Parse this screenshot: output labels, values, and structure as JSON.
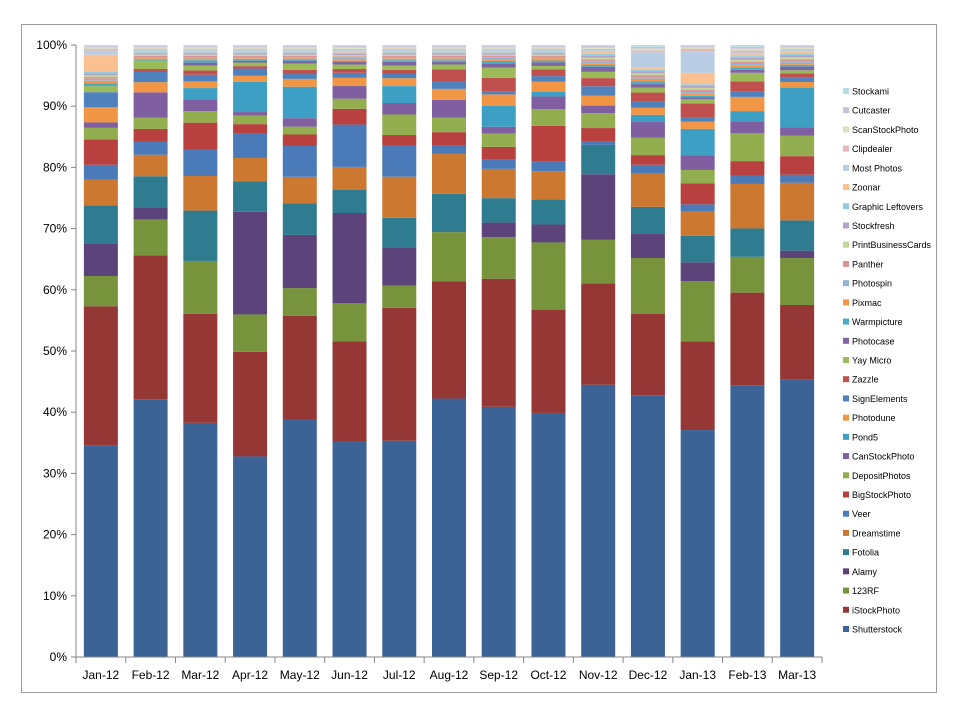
{
  "chart_data": {
    "type": "bar",
    "stacked": true,
    "normalized": true,
    "title": "",
    "xlabel": "",
    "ylabel": "",
    "ylim": [
      0,
      100
    ],
    "y_tick_labels": [
      "0%",
      "10%",
      "20%",
      "30%",
      "40%",
      "50%",
      "60%",
      "70%",
      "80%",
      "90%",
      "100%"
    ],
    "grid": false,
    "legend_position": "right",
    "categories": [
      "Jan-12",
      "Feb-12",
      "Mar-12",
      "Apr-12",
      "May-12",
      "Jun-12",
      "Jul-12",
      "Aug-12",
      "Sep-12",
      "Oct-12",
      "Nov-12",
      "Dec-12",
      "Jan-13",
      "Feb-13",
      "Mar-13"
    ],
    "series": [
      {
        "name": "Shutterstock",
        "color": "#3b6396",
        "values": [
          35,
          43,
          38.6,
          33.2,
          39.2,
          34.2,
          35.8,
          42.4,
          41,
          40.8,
          43.6,
          43.5,
          37.6,
          44,
          45
        ]
      },
      {
        "name": "iStockPhoto",
        "color": "#953735",
        "values": [
          23,
          24,
          18,
          17.3,
          17.2,
          15.8,
          22,
          19.2,
          21,
          17.2,
          16.2,
          13.5,
          14.7,
          15,
          12
        ]
      },
      {
        "name": "123RF",
        "color": "#77933c",
        "values": [
          5,
          6,
          8.7,
          6.2,
          4.6,
          6,
          3.7,
          8.1,
          6.8,
          11.3,
          7,
          9.3,
          10,
          5.8,
          7.6
        ]
      },
      {
        "name": "Alamy",
        "color": "#5c447a",
        "values": [
          5.4,
          2,
          0,
          17,
          8.8,
          14.3,
          6.2,
          0,
          2.4,
          3,
          10.5,
          4,
          3.1,
          0,
          1.2
        ]
      },
      {
        "name": "Fotolia",
        "color": "#2f7b8f",
        "values": [
          6.3,
          5.2,
          8.3,
          5,
          5.2,
          3.7,
          5,
          6.3,
          4,
          4.2,
          4.7,
          4.5,
          4.4,
          4.6,
          4.9
        ]
      },
      {
        "name": "Dreamstime",
        "color": "#cc7831",
        "values": [
          4.2,
          3.6,
          5.7,
          3.9,
          4.4,
          3.6,
          6.8,
          6.6,
          4.8,
          4.7,
          0,
          5.5,
          4.1,
          7.2,
          6.1
        ]
      },
      {
        "name": "Veer",
        "color": "#4a7bb8",
        "values": [
          2.5,
          2.2,
          4.3,
          4,
          5.1,
          6.7,
          5.1,
          1.3,
          1.5,
          1.6,
          0.5,
          1.5,
          1.1,
          1.3,
          1.3
        ]
      },
      {
        "name": "BigStockPhoto",
        "color": "#b8403e",
        "values": [
          4.2,
          2.1,
          4.5,
          1.6,
          1.9,
          2.5,
          1.8,
          2.2,
          2.1,
          6,
          2.2,
          1.6,
          3.5,
          2.4,
          3
        ]
      },
      {
        "name": "DepositPhotos",
        "color": "#92ae4f",
        "values": [
          1.9,
          1.9,
          1.9,
          1.4,
          1.3,
          1.6,
          3.4,
          2.4,
          2.2,
          2.8,
          2.4,
          2.9,
          2.2,
          4.5,
          3.3
        ]
      },
      {
        "name": "CanStockPhoto",
        "color": "#7f5f9f",
        "values": [
          0.9,
          4.2,
          1.9,
          0.6,
          1.4,
          2,
          1.9,
          2.9,
          1.1,
          2.1,
          1.2,
          2.6,
          2.4,
          1.9,
          1.4
        ]
      },
      {
        "name": "Pond5",
        "color": "#3e9fc4",
        "values": [
          0,
          0,
          1.9,
          5,
          5.2,
          0,
          2.8,
          0,
          3.4,
          0.8,
          0,
          1.2,
          4.4,
          1.7,
          6.4
        ]
      },
      {
        "name": "Photodune",
        "color": "#f09644",
        "values": [
          2.5,
          1.7,
          1.1,
          1,
          1.3,
          1.3,
          1.3,
          1.8,
          1.9,
          1.7,
          1.6,
          1.2,
          1.2,
          2.3,
          0.9
        ]
      },
      {
        "name": "SignElements",
        "color": "#4f81bd",
        "values": [
          2.5,
          1.7,
          1.1,
          1.2,
          0.8,
          0.8,
          0.7,
          1.2,
          0.5,
          0.9,
          1.5,
          1,
          0.7,
          0.9,
          0.8
        ]
      },
      {
        "name": "Zazzle",
        "color": "#c0504d",
        "values": [
          0,
          0.5,
          0.7,
          0.4,
          0.7,
          0.6,
          0.7,
          2,
          2.2,
          1.1,
          1.3,
          1.5,
          2.3,
          1.6,
          0.6
        ]
      },
      {
        "name": "Yay Micro",
        "color": "#9bbb59",
        "values": [
          1,
          1.4,
          0.8,
          0.6,
          1,
          0.7,
          0.7,
          0.8,
          1.7,
          0.6,
          1,
          0.8,
          0.7,
          1.4,
          0.5
        ]
      },
      {
        "name": "Photocase",
        "color": "#8064a2",
        "values": [
          0,
          0,
          0.5,
          0.3,
          0.5,
          0.4,
          0.6,
          0.4,
          0.7,
          0.6,
          0.8,
          0.6,
          0.3,
          0.5,
          0.6
        ]
      },
      {
        "name": "Warmpicture",
        "color": "#4bacc6",
        "values": [
          0.5,
          0.2,
          0.4,
          0.2,
          0.2,
          0.2,
          0.3,
          0.3,
          0.4,
          0.3,
          0.3,
          0.5,
          0.3,
          0.4,
          0.3
        ]
      },
      {
        "name": "Pixmac",
        "color": "#f79646",
        "values": [
          0.4,
          0.2,
          0.3,
          0.2,
          0.2,
          0.3,
          0.3,
          0.3,
          0.3,
          0.4,
          0.3,
          0.4,
          0.4,
          0.3,
          0.3
        ]
      },
      {
        "name": "Photospin",
        "color": "#95b3d7",
        "values": [
          0.3,
          0.2,
          0.2,
          0.2,
          0.2,
          0.2,
          0.2,
          0.2,
          0.3,
          0.2,
          0.3,
          0.3,
          0.3,
          0.3,
          0.3
        ]
      },
      {
        "name": "Panther",
        "color": "#d99694",
        "values": [
          0.3,
          0.2,
          0.2,
          0.2,
          0.2,
          0.2,
          0.2,
          0.2,
          0.2,
          0.2,
          0.3,
          0.3,
          0.3,
          0.3,
          0.3
        ]
      },
      {
        "name": "PrintBusinessCards",
        "color": "#c3d69b",
        "values": [
          0.3,
          0.2,
          0.2,
          0.2,
          0.2,
          0.2,
          0.2,
          0.2,
          0.2,
          0.2,
          0.3,
          0.3,
          0.3,
          0.3,
          0.3
        ]
      },
      {
        "name": "Stockfresh",
        "color": "#b3a2c7",
        "values": [
          0.3,
          0.2,
          0.2,
          0.2,
          0.2,
          0.2,
          0.2,
          0.2,
          0.2,
          0.2,
          0.3,
          0.3,
          0.3,
          0.3,
          0.3
        ]
      },
      {
        "name": "Graphic Leftovers",
        "color": "#93cddd",
        "values": [
          0.3,
          0.2,
          0.2,
          0.2,
          0.2,
          0.2,
          0.2,
          0.2,
          0.2,
          0.2,
          0.3,
          0.3,
          0.3,
          0.3,
          0.3
        ]
      },
      {
        "name": "Zoonar",
        "color": "#fac090",
        "values": [
          2.8,
          0.2,
          0.2,
          0.2,
          0.2,
          0.2,
          0.2,
          0.2,
          0.2,
          0.2,
          0.3,
          0.4,
          1.9,
          0.3,
          0.3
        ]
      },
      {
        "name": "Most Photos",
        "color": "#b9cde5",
        "values": [
          0.7,
          0.2,
          0.2,
          0.2,
          0.2,
          0.2,
          0.2,
          0.2,
          0.2,
          0.2,
          0.3,
          2.5,
          3.5,
          0.3,
          0.3
        ]
      },
      {
        "name": "Clipdealer",
        "color": "#e6b9b8",
        "values": [
          0.3,
          0.2,
          0.2,
          0.2,
          0.2,
          0.2,
          0.2,
          0.2,
          0.2,
          0.2,
          0.2,
          0.3,
          0.5,
          0.3,
          0.2
        ]
      },
      {
        "name": "ScanStockPhoto",
        "color": "#d7e4bd",
        "values": [
          0.2,
          0.2,
          0.2,
          0.2,
          0.2,
          0.2,
          0.2,
          0.2,
          0.2,
          0.2,
          0.2,
          0.3,
          0.2,
          0.3,
          0.2
        ]
      },
      {
        "name": "Cutcaster",
        "color": "#ccc1da",
        "values": [
          0.2,
          0.2,
          0.2,
          0.2,
          0.2,
          0.2,
          0.2,
          0.2,
          0.2,
          0.2,
          0.2,
          0.3,
          0.2,
          0.3,
          0.2
        ]
      },
      {
        "name": "Stockami",
        "color": "#b7dee8",
        "values": [
          0.2,
          0.2,
          0.2,
          0.2,
          0.2,
          0.2,
          0.2,
          0.2,
          0.2,
          0.2,
          0.2,
          0.3,
          0.2,
          0.3,
          0.2
        ]
      }
    ]
  }
}
